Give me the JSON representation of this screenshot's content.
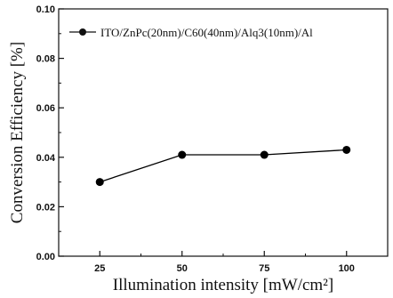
{
  "chart_data": {
    "type": "line",
    "title": "",
    "xlabel": "Illumination intensity [mW/cm²]",
    "ylabel": "Conversion Efficiency [%]",
    "xlim": [
      12.5,
      112.5
    ],
    "ylim": [
      0.0,
      0.1
    ],
    "x_ticks": [
      "25",
      "50",
      "75",
      "100"
    ],
    "y_ticks": [
      "0.00",
      "0.02",
      "0.04",
      "0.06",
      "0.08",
      "0.10"
    ],
    "x_tick_values": [
      25,
      50,
      75,
      100
    ],
    "y_tick_values": [
      0.0,
      0.02,
      0.04,
      0.06,
      0.08,
      0.1
    ],
    "grid": false,
    "legend_position": "top-left",
    "series": [
      {
        "name": "ITO/ZnPc(20nm)/C60(40nm)/Alq3(10nm)/Al",
        "x": [
          25,
          50,
          75,
          100
        ],
        "values": [
          0.03,
          0.041,
          0.041,
          0.043
        ],
        "color": "#000000",
        "marker": "circle"
      }
    ]
  }
}
